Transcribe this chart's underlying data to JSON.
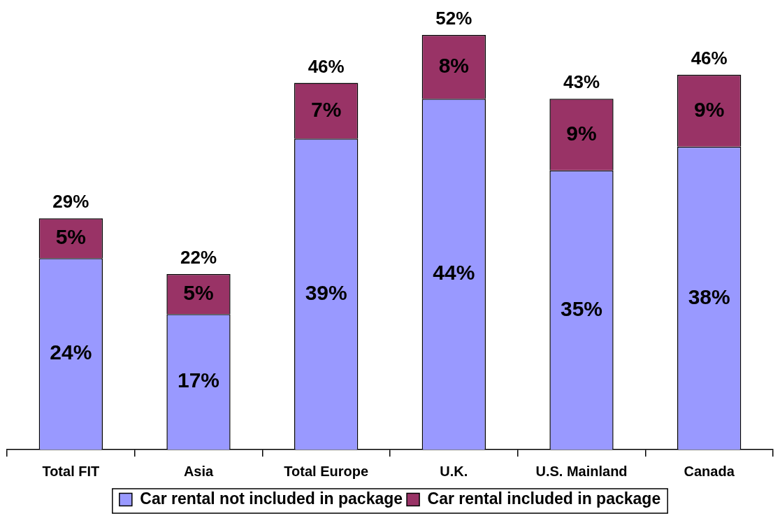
{
  "chart_data": {
    "type": "bar",
    "stacked": true,
    "categories": [
      "Total FIT",
      "Asia",
      "Total Europe",
      "U.K.",
      "U.S. Mainland",
      "Canada"
    ],
    "series": [
      {
        "name": "Car rental not included in package",
        "color": "#9999ff",
        "values": [
          24,
          17,
          39,
          44,
          35,
          38
        ],
        "value_labels": [
          "24%",
          "17%",
          "39%",
          "44%",
          "35%",
          "38%"
        ]
      },
      {
        "name": "Car rental included in package",
        "color": "#993366",
        "values": [
          5,
          5,
          7,
          8,
          9,
          9
        ],
        "value_labels": [
          "5%",
          "5%",
          "7%",
          "8%",
          "9%",
          "9%"
        ]
      }
    ],
    "totals": [
      "29%",
      "22%",
      "46%",
      "52%",
      "43%",
      "46%"
    ],
    "ylim": [
      0,
      52
    ],
    "tick_labels": "x",
    "grid": false,
    "legend": "bottom"
  }
}
